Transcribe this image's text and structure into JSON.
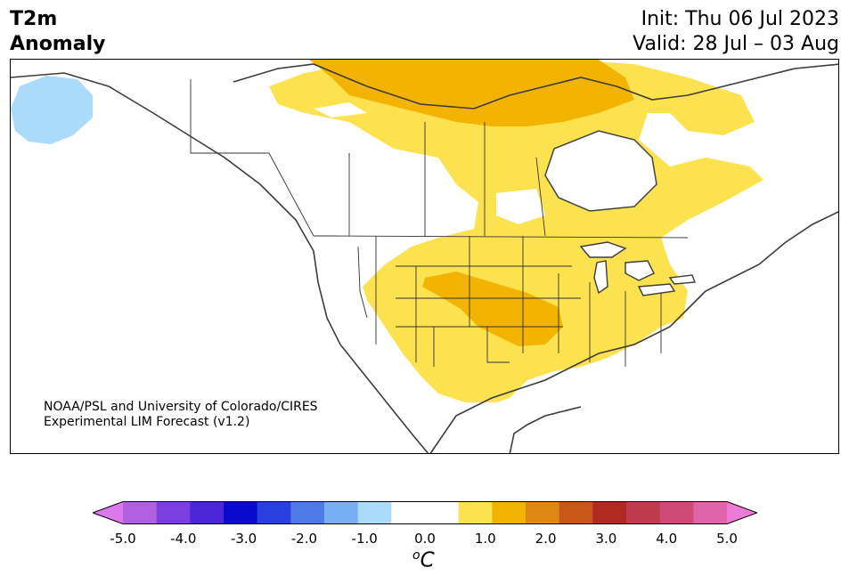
{
  "header": {
    "title_line1": "T2m",
    "title_line2": "Anomaly",
    "init": "Init: Thu 06 Jul 2023",
    "valid": "Valid: 28 Jul – 03 Aug"
  },
  "map": {
    "credit_line1": "NOAA/PSL and University of Colorado/CIRES",
    "credit_line2": "Experimental LIM Forecast (v1.2)"
  },
  "colorbar": {
    "ticks": [
      "-5.0",
      "-4.0",
      "-3.0",
      "-2.0",
      "-1.0",
      "0.0",
      "1.0",
      "2.0",
      "3.0",
      "4.0",
      "5.0"
    ],
    "unit_base": "C",
    "unit_sup": "o",
    "colors": [
      "#dd77ee",
      "#b060e0",
      "#7a3fde",
      "#4b25d8",
      "#0a0acf",
      "#2a3fe0",
      "#4f7be8",
      "#77b0f2",
      "#aadbfb",
      "#ffffff",
      "#ffffff",
      "#fde24f",
      "#f2b400",
      "#de8a12",
      "#c85818",
      "#b02a22",
      "#c03a4e",
      "#d04a78",
      "#de65a8",
      "#ee7ad8"
    ]
  }
}
